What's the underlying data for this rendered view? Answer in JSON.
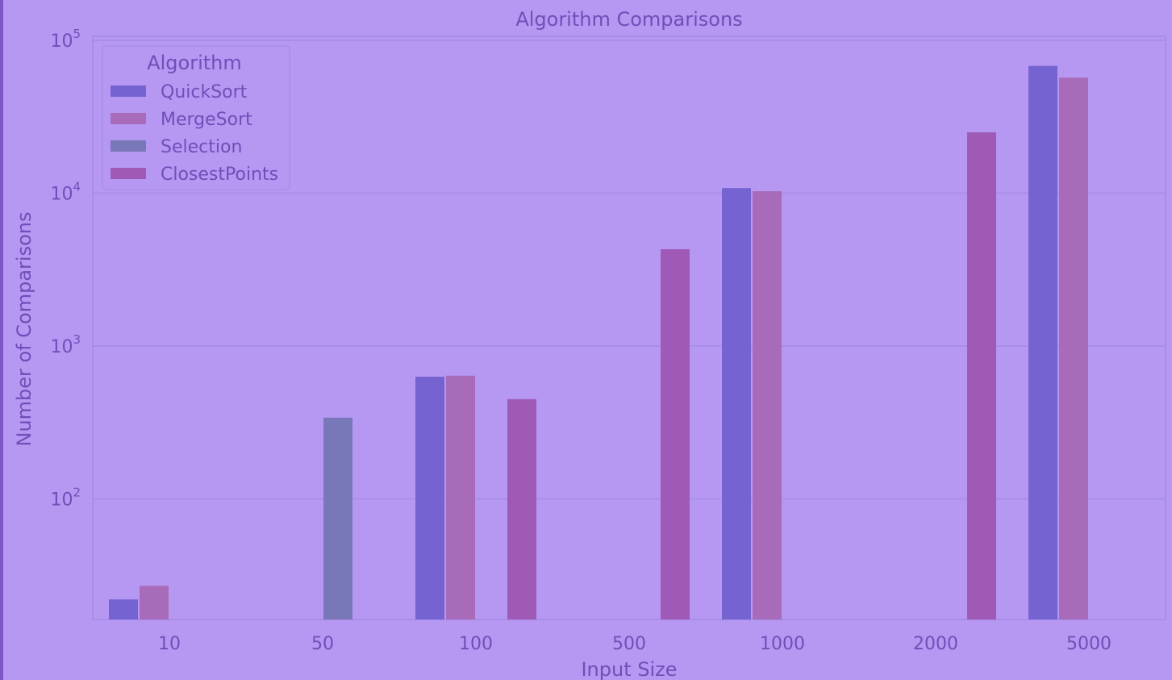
{
  "chart_data": {
    "type": "bar",
    "title": "Algorithm Comparisons",
    "xlabel": "Input Size",
    "ylabel": "Number of Comparisons",
    "yscale": "log",
    "ylim": [
      15,
      100000
    ],
    "y_ticks": [
      100,
      1000,
      10000,
      100000
    ],
    "y_tick_labels": [
      {
        "base": "10",
        "exp": "2"
      },
      {
        "base": "10",
        "exp": "3"
      },
      {
        "base": "10",
        "exp": "4"
      },
      {
        "base": "10",
        "exp": "5"
      }
    ],
    "categories": [
      "10",
      "50",
      "100",
      "500",
      "1000",
      "2000",
      "5000"
    ],
    "grid": true,
    "legend": {
      "title": "Algorithm",
      "position": "top-left"
    },
    "series": [
      {
        "name": "QuickSort",
        "color": "#7563d2",
        "values": [
          22,
          null,
          630,
          null,
          10800,
          null,
          68000
        ]
      },
      {
        "name": "MergeSort",
        "color": "#a76bba",
        "values": [
          27,
          null,
          640,
          null,
          10300,
          null,
          57000
        ]
      },
      {
        "name": "Selection",
        "color": "#7877b8",
        "values": [
          null,
          340,
          null,
          null,
          null,
          null,
          null
        ]
      },
      {
        "name": "ClosestPoints",
        "color": "#9f5ab8",
        "values": [
          null,
          null,
          450,
          4300,
          null,
          25000,
          null
        ]
      }
    ]
  }
}
